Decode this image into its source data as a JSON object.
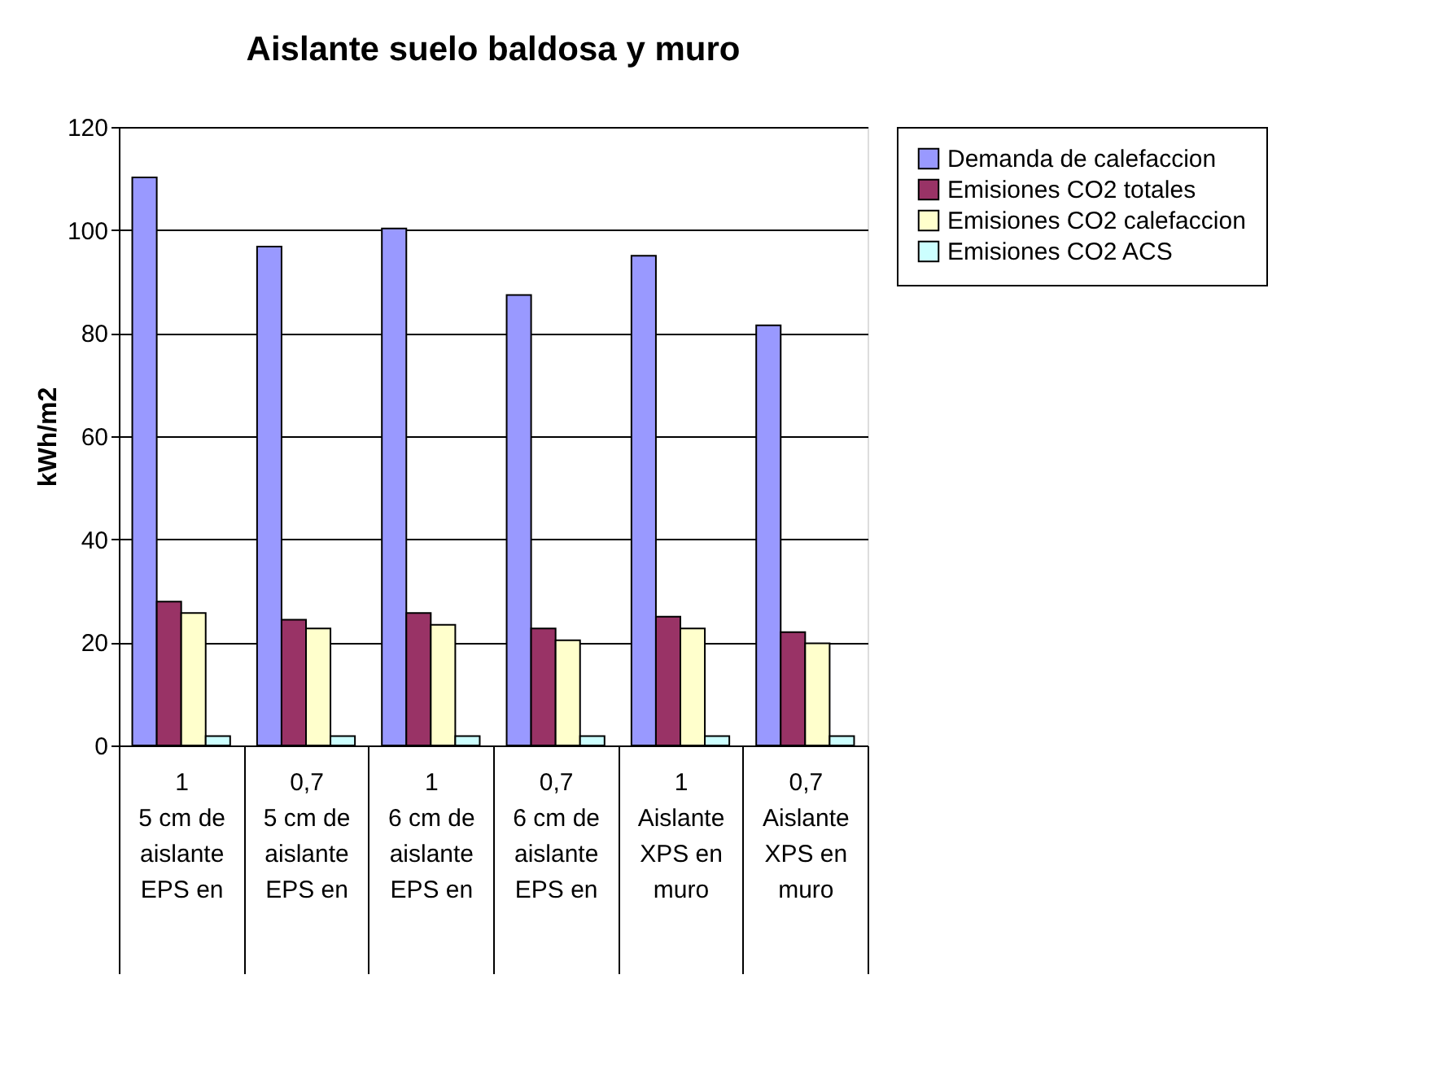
{
  "chart_data": {
    "type": "bar",
    "title": "Aislante suelo baldosa y muro",
    "ylabel": "kWh/m2",
    "categories": [
      "1\n5 cm de aislante EPS en",
      "0,7\n5 cm de aislante EPS en",
      "1\n6 cm de aislante EPS en",
      "0,7\n6 cm de aislante EPS en",
      "1\nAislante XPS en muro",
      "0,7\nAislante XPS en muro"
    ],
    "series": [
      {
        "name": "Demanda de calefaccion",
        "color": "#9999ff",
        "values": [
          110.2,
          96.8,
          100.3,
          87.4,
          95,
          81.5
        ]
      },
      {
        "name": "Emisiones CO2 totales",
        "color": "#993366",
        "values": [
          27.9,
          24.4,
          25.7,
          22.7,
          25,
          22
        ]
      },
      {
        "name": "Emisiones CO2 calefaccion",
        "color": "#ffffcc",
        "values": [
          25.7,
          22.7,
          23.4,
          20.4,
          22.7,
          19.8
        ]
      },
      {
        "name": "Emisiones CO2 ACS",
        "color": "#ccffff",
        "values": [
          1.8,
          1.8,
          1.8,
          1.8,
          1.8,
          1.8
        ]
      }
    ],
    "ylim": [
      0,
      120
    ],
    "yticks": [
      0,
      20,
      40,
      60,
      80,
      100,
      120
    ],
    "grid": "y",
    "legend": "right"
  }
}
